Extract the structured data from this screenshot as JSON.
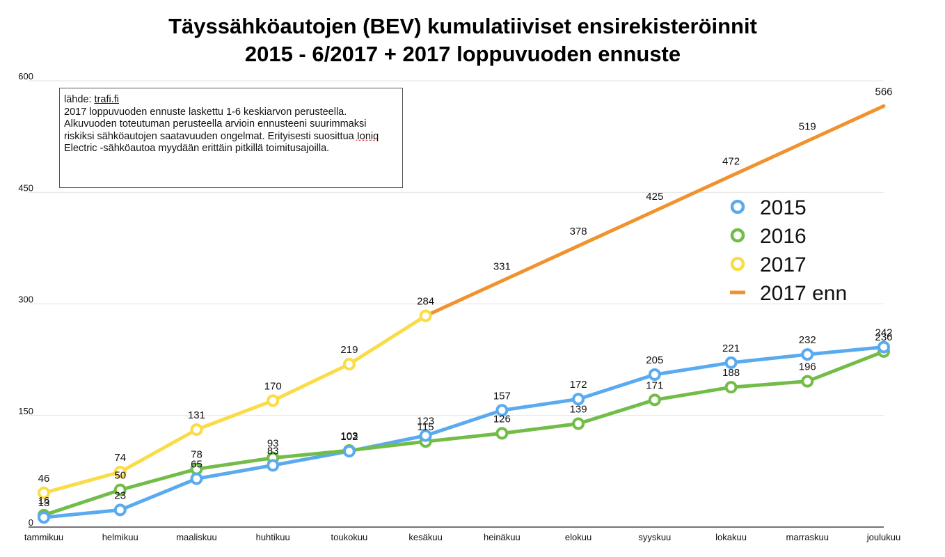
{
  "chart_data": {
    "type": "line",
    "title_line1": "Täyssähköautojen (BEV) kumulatiiviset ensirekisteröinnit",
    "title_line2": "2015 - 6/2017 + 2017 loppuvuoden ennuste",
    "categories": [
      "tammikuu",
      "helmikuu",
      "maaliskuu",
      "huhtikuu",
      "toukokuu",
      "kesäkuu",
      "heinäkuu",
      "elokuu",
      "syyskuu",
      "lokakuu",
      "marraskuu",
      "joulukuu"
    ],
    "ylim": [
      0,
      600
    ],
    "yticks": [
      0,
      150,
      300,
      450,
      600
    ],
    "grid": true,
    "legend_position": "right",
    "series": [
      {
        "name": "2015",
        "color": "#5aaaf0",
        "marker": "circle",
        "values": [
          13,
          23,
          65,
          83,
          102,
          123,
          157,
          172,
          205,
          221,
          232,
          242
        ]
      },
      {
        "name": "2016",
        "color": "#72bc48",
        "marker": "circle",
        "values": [
          16,
          50,
          78,
          93,
          103,
          115,
          126,
          139,
          171,
          188,
          196,
          236
        ]
      },
      {
        "name": "2017",
        "color": "#fadc46",
        "marker": "circle",
        "values": [
          46,
          74,
          131,
          170,
          219,
          284,
          null,
          null,
          null,
          null,
          null,
          null
        ]
      },
      {
        "name": "2017 enn",
        "color": "#f0922e",
        "marker": "none",
        "values": [
          null,
          null,
          null,
          null,
          null,
          284,
          331,
          378,
          425,
          472,
          519,
          566
        ]
      }
    ]
  },
  "note": {
    "source_prefix": "lähde: ",
    "source_link": "trafi.fi",
    "text_part1": "2017 loppuvuoden ennuste laskettu 1-6 keskiarvon perusteella. Alkuvuoden toteutuman perusteella arvioin ennusteeni suurimmaksi riskiksi sähköautojen saatavuuden ongelmat. Erityisesti suosittua ",
    "highlight_word": "Ioniq",
    "text_part2": " Electric -sähköautoa myydään erittäin pitkillä toimitusajoilla."
  }
}
